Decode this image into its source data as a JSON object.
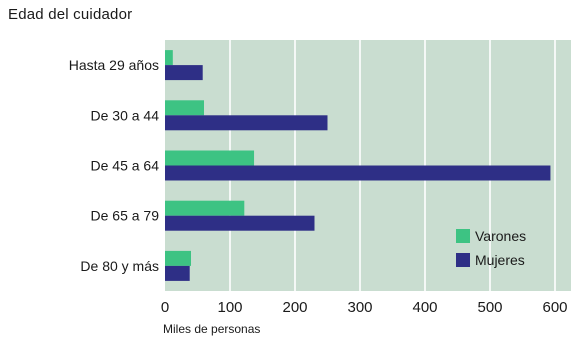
{
  "chart_data": {
    "type": "bar",
    "orientation": "horizontal",
    "title": "Edad del cuidador",
    "xlabel": "Miles de personas",
    "ylabel": "",
    "categories": [
      "Hasta 29 años",
      "De 30 a 44",
      "De 45 a 64",
      "De 65 a 79",
      "De 80 y más"
    ],
    "series": [
      {
        "name": "Varones",
        "color": "#3dc383",
        "values": [
          12,
          60,
          137,
          122,
          40
        ]
      },
      {
        "name": "Mujeres",
        "color": "#2e2f86",
        "values": [
          58,
          250,
          593,
          230,
          38
        ]
      }
    ],
    "xlim": [
      0,
      600
    ],
    "xticks": [
      0,
      100,
      200,
      300,
      400,
      500,
      600
    ],
    "grid": true,
    "legend_position": "bottom-right",
    "plot_background": "#c9ddd0"
  }
}
